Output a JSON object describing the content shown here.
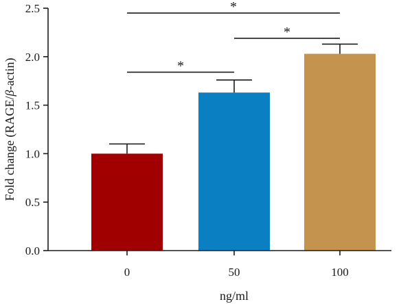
{
  "chart_data": {
    "type": "bar",
    "xlabel": "ng/ml",
    "ylabel_parts": [
      "Fold change (RAGE/",
      "β",
      "-actin)"
    ],
    "categories": [
      "0",
      "50",
      "100"
    ],
    "values": [
      1.0,
      1.63,
      2.03
    ],
    "errors": [
      0.1,
      0.13,
      0.1
    ],
    "colors": [
      "#a10000",
      "#0a80c3",
      "#c4944e"
    ],
    "ylim": [
      0,
      2.5
    ],
    "yticks": [
      "0.0",
      "0.5",
      "1.0",
      "1.5",
      "2.0",
      "2.5"
    ],
    "ytick_values": [
      0,
      0.5,
      1.0,
      1.5,
      2.0,
      2.5
    ],
    "significance": [
      {
        "from": 0,
        "to": 1,
        "y": 1.84,
        "label": "*"
      },
      {
        "from": 1,
        "to": 2,
        "y": 2.19,
        "label": "*"
      },
      {
        "from": 0,
        "to": 2,
        "y": 2.45,
        "label": "*"
      }
    ],
    "grid": false,
    "legend": "none"
  }
}
